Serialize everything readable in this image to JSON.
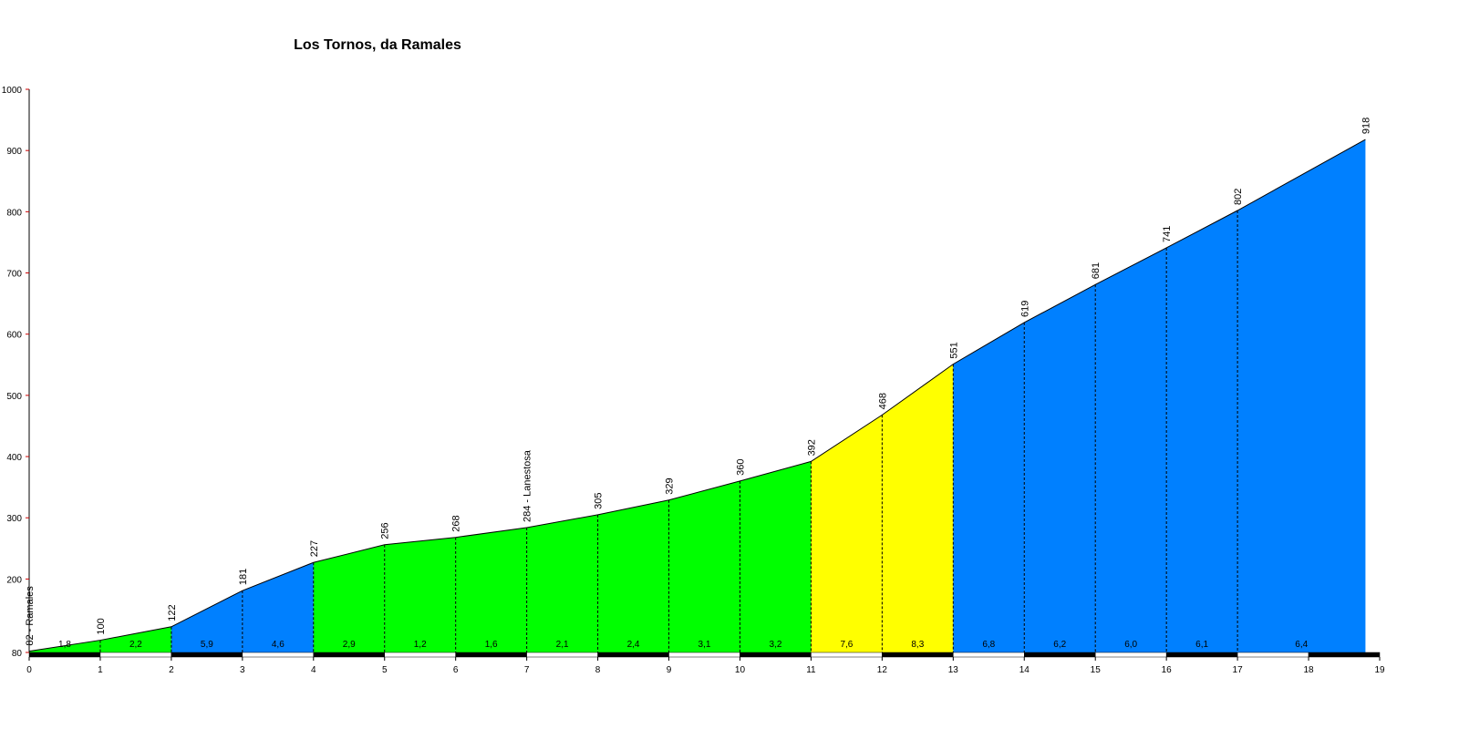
{
  "chart_data": {
    "type": "area",
    "title": "Los Tornos, da Ramales",
    "x": [
      0,
      1,
      2,
      3,
      4,
      5,
      6,
      7,
      8,
      9,
      10,
      11,
      12,
      13,
      14,
      15,
      16,
      17,
      18.8
    ],
    "values": [
      82,
      100,
      122,
      181,
      227,
      256,
      268,
      284,
      305,
      329,
      360,
      392,
      468,
      551,
      619,
      681,
      741,
      802,
      918
    ],
    "value_labels": [
      "82 - Ramales",
      "100",
      "122",
      "181",
      "227",
      "256",
      "268",
      "284 - Lanestosa",
      "305",
      "329",
      "360",
      "392",
      "468",
      "551",
      "619",
      "681",
      "741",
      "802",
      "918"
    ],
    "segments": [
      {
        "value": 1.8,
        "label": "1,8",
        "color": "#00ff00"
      },
      {
        "value": 2.2,
        "label": "2,2",
        "color": "#00ff00"
      },
      {
        "value": 5.9,
        "label": "5,9",
        "color": "#0080ff"
      },
      {
        "value": 4.6,
        "label": "4,6",
        "color": "#0080ff"
      },
      {
        "value": 2.9,
        "label": "2,9",
        "color": "#00ff00"
      },
      {
        "value": 1.2,
        "label": "1,2",
        "color": "#00ff00"
      },
      {
        "value": 1.6,
        "label": "1,6",
        "color": "#00ff00"
      },
      {
        "value": 2.1,
        "label": "2,1",
        "color": "#00ff00"
      },
      {
        "value": 2.4,
        "label": "2,4",
        "color": "#00ff00"
      },
      {
        "value": 3.1,
        "label": "3,1",
        "color": "#00ff00"
      },
      {
        "value": 3.2,
        "label": "3,2",
        "color": "#00ff00"
      },
      {
        "value": 7.6,
        "label": "7,6",
        "color": "#ffff00"
      },
      {
        "value": 8.3,
        "label": "8,3",
        "color": "#ffff00"
      },
      {
        "value": 6.8,
        "label": "6,8",
        "color": "#0080ff"
      },
      {
        "value": 6.2,
        "label": "6,2",
        "color": "#0080ff"
      },
      {
        "value": 6.0,
        "label": "6,0",
        "color": "#0080ff"
      },
      {
        "value": 6.1,
        "label": "6,1",
        "color": "#0080ff"
      },
      {
        "value": 6.4,
        "label": "6,4",
        "color": "#0080ff"
      }
    ],
    "xlim": [
      0,
      19
    ],
    "xticks": [
      0,
      1,
      2,
      3,
      4,
      5,
      6,
      7,
      8,
      9,
      10,
      11,
      12,
      13,
      14,
      15,
      16,
      17,
      18,
      19
    ],
    "ylim": [
      80,
      1000
    ],
    "yticks": [
      80,
      200,
      300,
      400,
      500,
      600,
      700,
      800,
      900,
      1000
    ]
  }
}
